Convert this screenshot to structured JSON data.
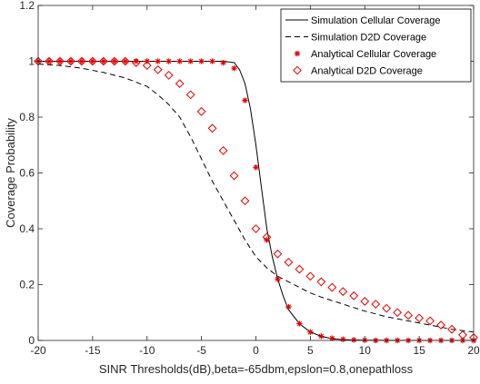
{
  "chart_data": {
    "type": "line",
    "xlabel": "SINR Thresholds(dB),beta=-65dbm,epslon=0.8,onepathloss",
    "ylabel": "Coverage Probability",
    "xlim": [
      -20,
      20
    ],
    "ylim": [
      0,
      1.2
    ],
    "x_ticks": [
      -20,
      -15,
      -10,
      -5,
      0,
      5,
      10,
      15,
      20
    ],
    "x_tick_labels": [
      "-20",
      "-15",
      "-10",
      "-5",
      "0",
      "5",
      "10",
      "15",
      "20"
    ],
    "y_ticks": [
      0,
      0.2,
      0.4,
      0.6,
      0.8,
      1,
      1.2
    ],
    "y_tick_labels": [
      "0",
      "0.2",
      "0.4",
      "0.6",
      "0.8",
      "1",
      "1.2"
    ],
    "grid": false,
    "legend_position": "top-right",
    "series": [
      {
        "name": "Simulation Cellular Coverage",
        "style": "solid-line",
        "color": "#000000",
        "x": [
          -20,
          -15,
          -10,
          -5,
          -3,
          -2,
          -1.5,
          -1,
          -0.5,
          0,
          0.5,
          1,
          1.5,
          2,
          2.5,
          3,
          4,
          5,
          6,
          7,
          8,
          10,
          15,
          20
        ],
        "y": [
          1.0,
          1.0,
          1.0,
          1.0,
          1.0,
          0.995,
          0.97,
          0.92,
          0.83,
          0.7,
          0.55,
          0.4,
          0.3,
          0.22,
          0.16,
          0.11,
          0.06,
          0.03,
          0.015,
          0.006,
          0.003,
          0.001,
          0.0,
          0.0
        ]
      },
      {
        "name": "Simulation D2D Coverage",
        "style": "dashed-line",
        "color": "#000000",
        "x": [
          -20,
          -18,
          -16,
          -14,
          -12,
          -10,
          -9,
          -8,
          -7,
          -6,
          -5,
          -4,
          -3,
          -2,
          -1,
          0,
          1,
          2,
          3,
          4,
          5,
          6,
          8,
          10,
          12,
          14,
          16,
          18,
          20
        ],
        "y": [
          0.99,
          0.985,
          0.975,
          0.96,
          0.94,
          0.91,
          0.88,
          0.845,
          0.8,
          0.73,
          0.65,
          0.57,
          0.5,
          0.43,
          0.36,
          0.3,
          0.26,
          0.23,
          0.21,
          0.19,
          0.17,
          0.155,
          0.13,
          0.105,
          0.085,
          0.07,
          0.055,
          0.04,
          0.03
        ]
      },
      {
        "name": "Analytical Cellular Coverage",
        "style": "asterisk-markers",
        "color": "#e00000",
        "x": [
          -20,
          -19,
          -18,
          -17,
          -16,
          -15,
          -14,
          -13,
          -12,
          -11,
          -10,
          -9,
          -8,
          -7,
          -6,
          -5,
          -4,
          -3,
          -2,
          -1,
          0,
          1,
          2,
          3,
          4,
          5,
          6,
          7,
          8,
          9,
          10,
          11,
          12,
          13,
          14,
          15,
          16,
          17,
          18,
          19,
          20
        ],
        "y": [
          1.0,
          1.0,
          1.0,
          1.0,
          1.0,
          1.0,
          1.0,
          1.0,
          1.0,
          1.0,
          1.0,
          1.0,
          1.0,
          1.0,
          1.0,
          1.0,
          1.0,
          0.995,
          0.975,
          0.86,
          0.62,
          0.36,
          0.22,
          0.12,
          0.06,
          0.03,
          0.015,
          0.008,
          0.004,
          0.002,
          0.001,
          0.0,
          0.0,
          0.0,
          0.0,
          0.0,
          0.0,
          0.0,
          0.0,
          0.0,
          0.0
        ]
      },
      {
        "name": "Analytical D2D Coverage",
        "style": "diamond-markers",
        "color": "#e00000",
        "x": [
          -20,
          -19,
          -18,
          -17,
          -16,
          -15,
          -14,
          -13,
          -12,
          -11,
          -10,
          -9,
          -8,
          -7,
          -6,
          -5,
          -4,
          -3,
          -2,
          -1,
          0,
          1,
          2,
          3,
          4,
          5,
          6,
          7,
          8,
          9,
          10,
          11,
          12,
          13,
          14,
          15,
          16,
          17,
          18,
          19,
          20
        ],
        "y": [
          1.0,
          1.0,
          1.0,
          1.0,
          1.0,
          1.0,
          1.0,
          1.0,
          1.0,
          0.995,
          0.985,
          0.97,
          0.95,
          0.92,
          0.88,
          0.82,
          0.76,
          0.68,
          0.59,
          0.5,
          0.4,
          0.37,
          0.31,
          0.28,
          0.255,
          0.23,
          0.21,
          0.19,
          0.175,
          0.16,
          0.14,
          0.13,
          0.115,
          0.1,
          0.09,
          0.08,
          0.07,
          0.055,
          0.04,
          0.02,
          0.01
        ]
      }
    ]
  }
}
